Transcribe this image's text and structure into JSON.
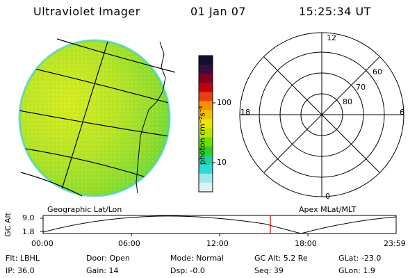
{
  "header": {
    "title": "Ultraviolet Imager",
    "date": "01 Jan 07",
    "time": "15:25:34 UT"
  },
  "colorbar": {
    "unit_label": "photon cm⁻²s⁻¹",
    "ticks": [
      "100",
      "10"
    ],
    "colors": [
      "#101030",
      "#3a0a40",
      "#800020",
      "#c00010",
      "#e84010",
      "#f59000",
      "#f0c000",
      "#e8e800",
      "#b8e800",
      "#70e000",
      "#30d020",
      "#20d0a0",
      "#30d8d8",
      "#a0e8e8",
      "#e0f0f0"
    ]
  },
  "polar_plot": {
    "mlt_labels": {
      "top": "12",
      "bottom": "0",
      "left": "18",
      "right": "6"
    },
    "mlat_labels": [
      "60",
      "70",
      "80"
    ]
  },
  "timeline": {
    "left_title": "Geographic Lat/Lon",
    "right_title": "Apex MLat/MLT",
    "ylabel": "GC Alt",
    "yticks": [
      "9.0",
      "1.8"
    ],
    "xticks": [
      "00:00",
      "06:00",
      "12:00",
      "18:00",
      "23:59"
    ],
    "cursor_color": "#cc0000"
  },
  "info": {
    "flt": "Flt: LBHL",
    "ip": "IP: 36.0",
    "door": "Door: Open",
    "gain": "Gain: 14",
    "mode": "Mode: Normal",
    "dsp": "Dsp:    -0.0",
    "gcalt": "GC Alt: 5.2 Re",
    "seq": "Seq: 39",
    "glat": "GLat:  -23.0",
    "glon": "GLon:    1.9"
  }
}
